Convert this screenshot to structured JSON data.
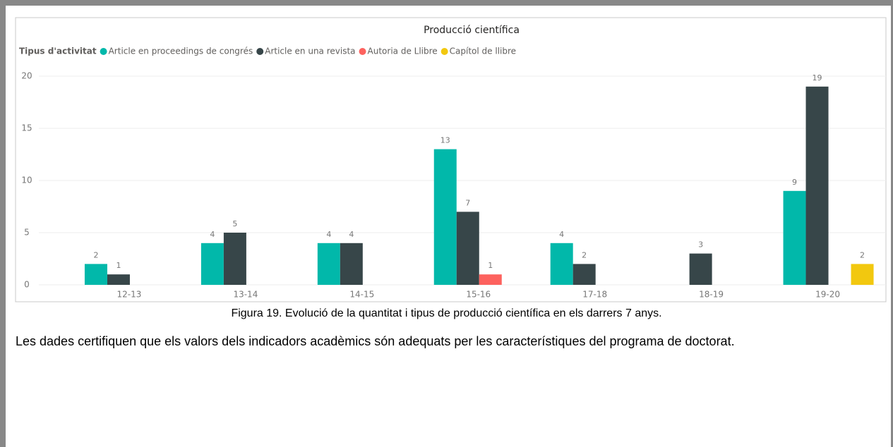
{
  "chart_data": {
    "type": "bar",
    "title": "Producció científica",
    "legend_title": "Tipus d'activitat",
    "categories": [
      "12-13",
      "13-14",
      "14-15",
      "15-16",
      "17-18",
      "18-19",
      "19-20"
    ],
    "series": [
      {
        "name": "Article en proceedings de congrés",
        "color": "#01B8AA",
        "values": [
          2,
          4,
          4,
          13,
          4,
          null,
          9
        ]
      },
      {
        "name": "Article en una revista",
        "color": "#374649",
        "values": [
          1,
          5,
          4,
          7,
          2,
          3,
          19
        ]
      },
      {
        "name": "Autoria de Llibre",
        "color": "#FD625E",
        "values": [
          null,
          null,
          null,
          1,
          null,
          null,
          null
        ]
      },
      {
        "name": "Capítol de llibre",
        "color": "#F2C80F",
        "values": [
          null,
          null,
          null,
          null,
          null,
          null,
          2
        ]
      }
    ],
    "ylim": [
      0,
      20
    ],
    "yticks": [
      0,
      5,
      10,
      15,
      20
    ],
    "grid": true,
    "legend": "top-left"
  },
  "caption": "Figura 19. Evolució de la quantitat i tipus de producció científica en els darrers 7 anys.",
  "paragraph": "Les dades certifiquen que els valors dels indicadors acadèmics són adequats per les característiques del programa de doctorat."
}
